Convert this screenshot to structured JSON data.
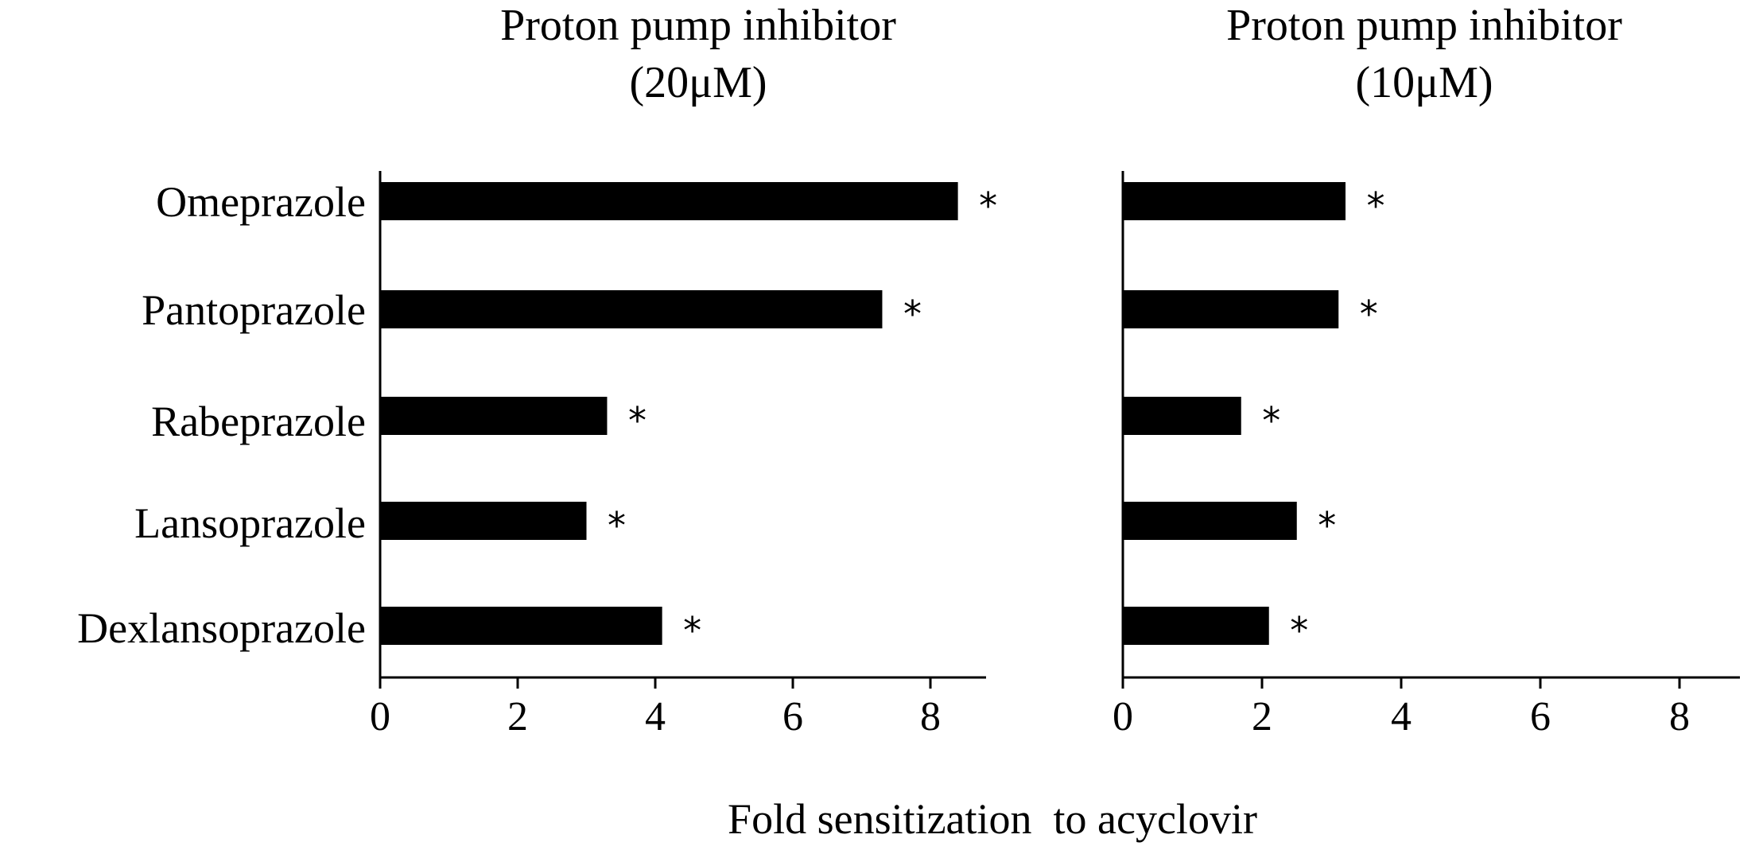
{
  "chart_data": [
    {
      "type": "bar",
      "orientation": "horizontal",
      "title_lines": [
        "Proton pump inhibitor",
        "(20μM)"
      ],
      "categories": [
        "Omeprazole",
        "Pantoprazole",
        "Rabeprazole",
        "Lansoprazole",
        "Dexlansoprazole"
      ],
      "values": [
        8.4,
        7.3,
        3.3,
        3.0,
        4.1
      ],
      "significance": [
        "*",
        "*",
        "*",
        "*",
        "*"
      ],
      "xlim": [
        0,
        9
      ],
      "xticks": [
        "0",
        "2",
        "4",
        "6",
        "8"
      ],
      "grid": false
    },
    {
      "type": "bar",
      "orientation": "horizontal",
      "title_lines": [
        "Proton pump inhibitor",
        "(10μM)"
      ],
      "categories": [
        "Omeprazole",
        "Pantoprazole",
        "Rabeprazole",
        "Lansoprazole",
        "Dexlansoprazole"
      ],
      "values": [
        3.2,
        3.1,
        1.7,
        2.5,
        2.1
      ],
      "significance": [
        "*",
        "*",
        "*",
        "*",
        "*"
      ],
      "xlim": [
        0,
        9
      ],
      "xticks": [
        "0",
        "2",
        "4",
        "6",
        "8"
      ],
      "grid": false
    }
  ],
  "shared": {
    "xlabel": "Fold sensitization  to acyclovir"
  }
}
